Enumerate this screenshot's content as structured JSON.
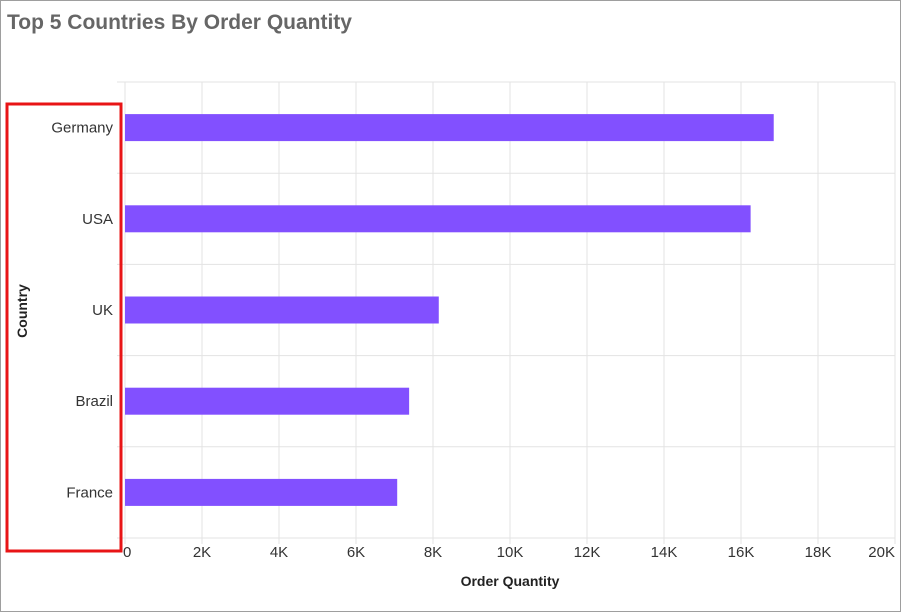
{
  "colors": {
    "bar": "#8250ff",
    "grid": "#e3e3e3",
    "highlight": "#e81416"
  },
  "chart_data": {
    "type": "bar",
    "orientation": "horizontal",
    "title": "Top 5 Countries By Order Quantity",
    "xlabel": "Order Quantity",
    "ylabel": "Country",
    "categories": [
      "Germany",
      "USA",
      "UK",
      "Brazil",
      "France"
    ],
    "values": [
      16850,
      16250,
      8150,
      7380,
      7070
    ],
    "xlim": [
      0,
      20000
    ],
    "xticks": [
      0,
      2000,
      4000,
      6000,
      8000,
      10000,
      12000,
      14000,
      16000,
      18000,
      20000
    ],
    "xtick_labels": [
      "0",
      "2K",
      "4K",
      "6K",
      "8K",
      "10K",
      "12K",
      "14K",
      "16K",
      "18K",
      "20K"
    ],
    "grid": true,
    "legend": "none"
  }
}
